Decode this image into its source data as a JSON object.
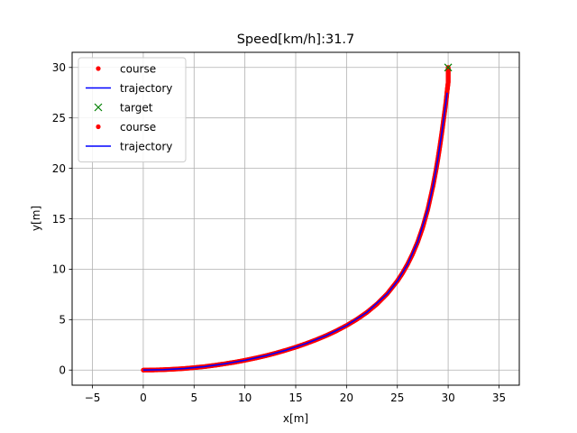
{
  "chart_data": {
    "type": "line",
    "title": "Speed[km/h]:31.7",
    "xlabel": "x[m]",
    "ylabel": "y[m]",
    "xlim": [
      -7,
      37
    ],
    "ylim": [
      -1.5,
      31.5
    ],
    "xticks": [
      -5,
      0,
      5,
      10,
      15,
      20,
      25,
      30,
      35
    ],
    "yticks": [
      0,
      5,
      10,
      15,
      20,
      25,
      30
    ],
    "grid": true,
    "legend_position": "top-left",
    "legend": [
      {
        "label": "course",
        "marker": "dot",
        "color": "#ff0000"
      },
      {
        "label": "trajectory",
        "marker": "line",
        "color": "#0000ff"
      },
      {
        "label": "target",
        "marker": "x",
        "color": "#008000"
      },
      {
        "label": "course",
        "marker": "dot",
        "color": "#ff0000"
      },
      {
        "label": "trajectory",
        "marker": "line",
        "color": "#0000ff"
      }
    ],
    "series": [
      {
        "name": "course",
        "style": "dots",
        "color": "#ff0000",
        "points": [
          [
            0,
            0
          ],
          [
            1,
            0.01
          ],
          [
            2,
            0.04
          ],
          [
            3,
            0.09
          ],
          [
            4,
            0.15
          ],
          [
            5,
            0.24
          ],
          [
            6,
            0.34
          ],
          [
            7,
            0.47
          ],
          [
            8,
            0.62
          ],
          [
            9,
            0.78
          ],
          [
            10,
            0.97
          ],
          [
            11,
            1.18
          ],
          [
            12,
            1.41
          ],
          [
            13,
            1.67
          ],
          [
            14,
            1.96
          ],
          [
            15,
            2.27
          ],
          [
            16,
            2.62
          ],
          [
            17,
            3.0
          ],
          [
            18,
            3.42
          ],
          [
            19,
            3.89
          ],
          [
            20,
            4.42
          ],
          [
            21,
            5.02
          ],
          [
            22,
            5.72
          ],
          [
            23,
            6.55
          ],
          [
            24,
            7.56
          ],
          [
            25,
            8.83
          ],
          [
            25.5,
            9.6
          ],
          [
            26,
            10.48
          ],
          [
            26.5,
            11.5
          ],
          [
            27,
            12.7
          ],
          [
            27.5,
            14.15
          ],
          [
            28,
            15.95
          ],
          [
            28.5,
            18.2
          ],
          [
            28.8,
            19.8
          ],
          [
            29,
            21.0
          ],
          [
            29.2,
            22.3
          ],
          [
            29.4,
            23.7
          ],
          [
            29.6,
            25.2
          ],
          [
            29.8,
            26.7
          ],
          [
            29.9,
            27.7
          ],
          [
            30,
            28.5
          ],
          [
            30,
            29.0
          ],
          [
            30,
            29.5
          ],
          [
            30,
            30.0
          ]
        ]
      },
      {
        "name": "trajectory",
        "style": "line",
        "color": "#0000ff",
        "points": [
          [
            0,
            0
          ],
          [
            2,
            0.04
          ],
          [
            4,
            0.15
          ],
          [
            6,
            0.34
          ],
          [
            8,
            0.62
          ],
          [
            10,
            0.97
          ],
          [
            12,
            1.41
          ],
          [
            14,
            1.96
          ],
          [
            16,
            2.62
          ],
          [
            18,
            3.42
          ],
          [
            20,
            4.42
          ],
          [
            22,
            5.72
          ],
          [
            24,
            7.56
          ],
          [
            25,
            8.83
          ],
          [
            26,
            10.48
          ],
          [
            27,
            12.7
          ],
          [
            28,
            15.95
          ],
          [
            28.5,
            18.2
          ],
          [
            29,
            21.0
          ],
          [
            29.4,
            23.7
          ],
          [
            29.8,
            26.7
          ],
          [
            29.9,
            27.5
          ]
        ]
      },
      {
        "name": "target",
        "style": "x",
        "color": "#008000",
        "points": [
          [
            30,
            30
          ]
        ]
      }
    ]
  }
}
